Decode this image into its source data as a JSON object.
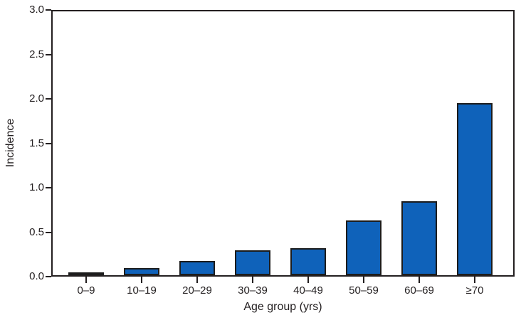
{
  "chart_data": {
    "type": "bar",
    "title": "",
    "categories": [
      "0–9",
      "10–19",
      "20–29",
      "30–39",
      "40–49",
      "50–59",
      "60–69",
      "≥70"
    ],
    "values": [
      0.02,
      0.08,
      0.16,
      0.28,
      0.31,
      0.62,
      0.84,
      1.96
    ],
    "xlabel": "Age group (yrs)",
    "ylabel": "Incidence",
    "ylim": [
      0.0,
      3.0
    ],
    "y_ticks": [
      0.0,
      0.5,
      1.0,
      1.5,
      2.0,
      2.5,
      3.0
    ],
    "y_tick_labels": [
      "0.0",
      "0.5",
      "1.0",
      "1.5",
      "2.0",
      "2.5",
      "3.0"
    ],
    "grid": false,
    "legend": "none",
    "bar_color": "#0f62ba",
    "bar_edge_color": "#1c1c1c",
    "axis_color": "#231f20",
    "plot_border": "box"
  }
}
